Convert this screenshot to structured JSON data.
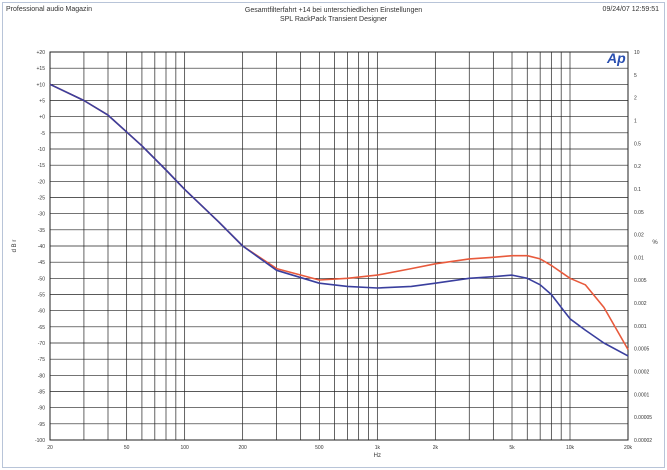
{
  "header": {
    "left": "Professional audio Magazin",
    "title": "Gesamtfilterfahrt +14 bei unterschiedlichen Einstellungen",
    "subtitle": "SPL RackPack Transient Designer",
    "right": "09/24/07 12:59:51"
  },
  "logo": "Ap",
  "colors": {
    "red": "#e85a3c",
    "blue": "#3a3f9e",
    "grid": "#222222",
    "frame": "#b8c4d8"
  },
  "chart_data": {
    "type": "line",
    "x_scale": "log",
    "xlim": [
      20,
      20000
    ],
    "ylim": [
      -100,
      20
    ],
    "y_ticks": [
      "+20",
      "+15",
      "+10",
      "+5",
      "+0",
      "-5",
      "-10",
      "-15",
      "-20",
      "-25",
      "-30",
      "-35",
      "-40",
      "-45",
      "-50",
      "-55",
      "-60",
      "-65",
      "-70",
      "-75",
      "-80",
      "-85",
      "-90",
      "-95",
      "-100"
    ],
    "x_ticks": [
      {
        "v": 20,
        "label": "20"
      },
      {
        "v": 50,
        "label": "50"
      },
      {
        "v": 100,
        "label": "100"
      },
      {
        "v": 200,
        "label": "200"
      },
      {
        "v": 500,
        "label": "500"
      },
      {
        "v": 1000,
        "label": "1k"
      },
      {
        "v": 2000,
        "label": "2k"
      },
      {
        "v": 5000,
        "label": "5k"
      },
      {
        "v": 10000,
        "label": "10k"
      },
      {
        "v": 20000,
        "label": "20k"
      }
    ],
    "right_ticks": [
      "10",
      "5",
      "2",
      "1",
      "0.5",
      "0.2",
      "0.1",
      "0.05",
      "0.02",
      "0.01",
      "0.005",
      "0.002",
      "0.001",
      "0.0005",
      "0.0002",
      "0.0001",
      "0.00005",
      "0.00002"
    ],
    "xlabel": "Hz",
    "ylabel": "d B r",
    "ylabel_right": "%",
    "grid": true,
    "series": [
      {
        "color": "#e85a3c",
        "x": [
          20,
          30,
          40,
          60,
          80,
          100,
          150,
          200,
          300,
          500,
          700,
          1000,
          1500,
          2000,
          3000,
          4000,
          5000,
          6000,
          7000,
          8000,
          10000,
          12000,
          15000,
          20000
        ],
        "y": [
          10,
          5,
          0.5,
          -9,
          -16.5,
          -22.5,
          -32.5,
          -40,
          -47,
          -50.5,
          -50,
          -49,
          -47,
          -45.5,
          -44,
          -43.5,
          -43,
          -43,
          -44,
          -46,
          -50,
          -52,
          -59,
          -72
        ]
      },
      {
        "color": "#3a3f9e",
        "x": [
          20,
          30,
          40,
          60,
          80,
          100,
          150,
          200,
          300,
          500,
          700,
          1000,
          1500,
          2000,
          3000,
          4000,
          5000,
          6000,
          7000,
          8000,
          10000,
          12000,
          15000,
          20000
        ],
        "y": [
          10,
          5,
          0.5,
          -9,
          -16.5,
          -22.5,
          -32.5,
          -40,
          -47.5,
          -51.5,
          -52.5,
          -53,
          -52.5,
          -51.5,
          -50,
          -49.5,
          -49,
          -50,
          -52,
          -55,
          -62.5,
          -66,
          -70,
          -74
        ]
      }
    ]
  }
}
